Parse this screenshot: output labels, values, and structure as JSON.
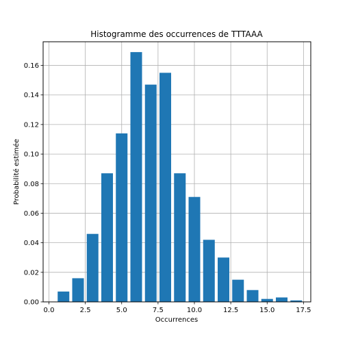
{
  "chart_data": {
    "type": "bar",
    "title": "Histogramme des occurrences de TTTAAA",
    "xlabel": "Occurrences",
    "ylabel": "Probabilité estimée",
    "xlim": [
      -0.4,
      18.0
    ],
    "ylim": [
      0,
      0.176
    ],
    "grid": true,
    "bar_width": 0.8,
    "bar_color": "#1f77b4",
    "x": [
      1,
      2,
      3,
      4,
      5,
      6,
      7,
      8,
      9,
      10,
      11,
      12,
      13,
      14,
      15,
      16,
      17
    ],
    "values": [
      0.007,
      0.016,
      0.046,
      0.087,
      0.114,
      0.169,
      0.147,
      0.155,
      0.087,
      0.071,
      0.042,
      0.03,
      0.015,
      0.008,
      0.002,
      0.003,
      0.001
    ],
    "xticks": [
      0.0,
      2.5,
      5.0,
      7.5,
      10.0,
      12.5,
      15.0,
      17.5
    ],
    "xtick_labels": [
      "0.0",
      "2.5",
      "5.0",
      "7.5",
      "10.0",
      "12.5",
      "15.0",
      "17.5"
    ],
    "yticks": [
      0.0,
      0.02,
      0.04,
      0.06,
      0.08,
      0.1,
      0.12,
      0.14,
      0.16
    ],
    "ytick_labels": [
      "0.00",
      "0.02",
      "0.04",
      "0.06",
      "0.08",
      "0.10",
      "0.12",
      "0.14",
      "0.16"
    ]
  }
}
